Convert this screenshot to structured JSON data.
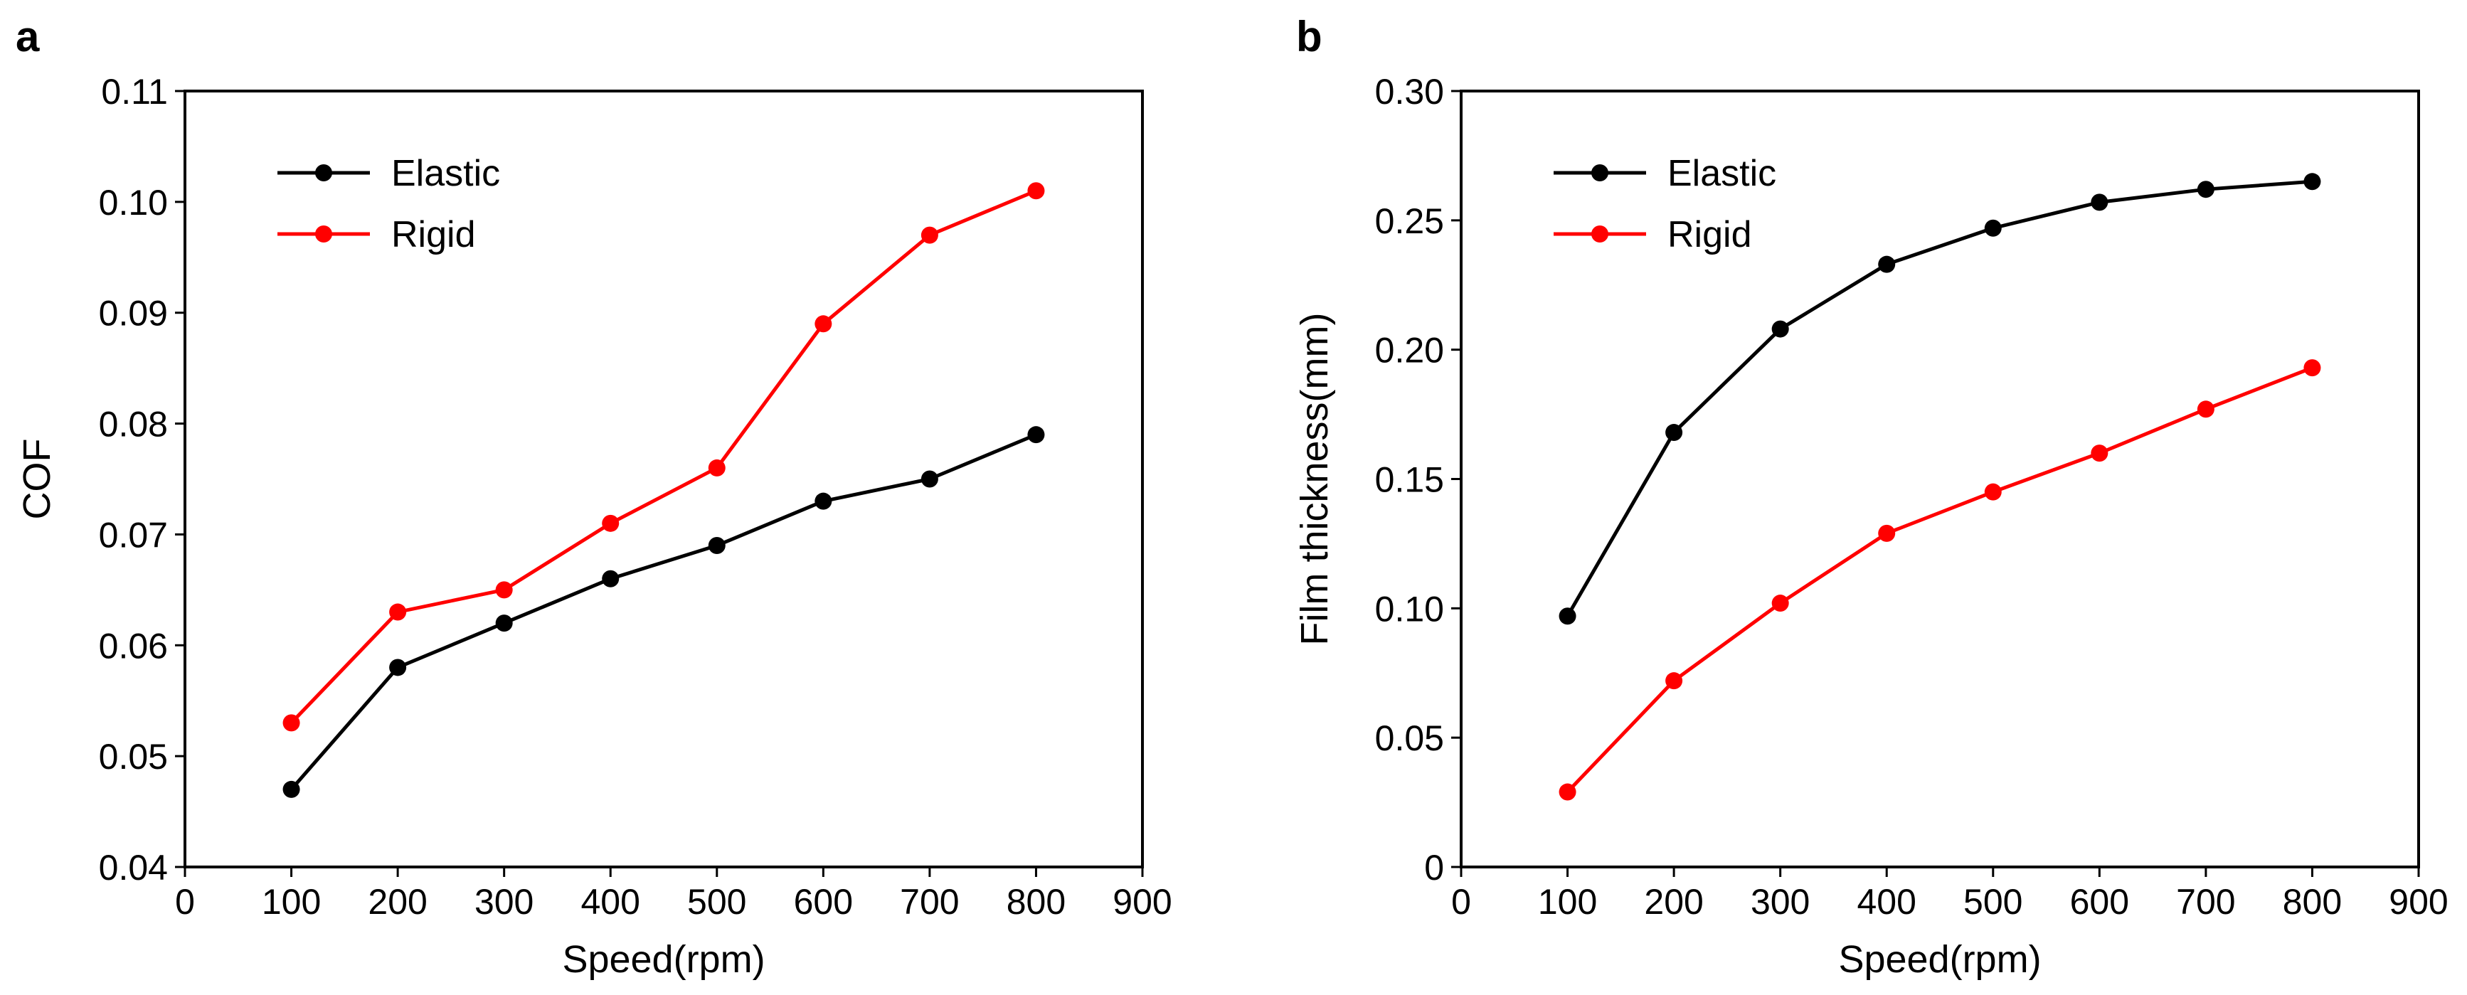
{
  "chart_data": [
    {
      "panel_label": "a",
      "type": "line",
      "xlabel": "Speed(rpm)",
      "ylabel": "COF",
      "xlim": [
        0,
        900
      ],
      "ylim": [
        0.04,
        0.11
      ],
      "xticks": [
        0,
        100,
        200,
        300,
        400,
        500,
        600,
        700,
        800,
        900
      ],
      "yticks": [
        0.04,
        0.05,
        0.06,
        0.07,
        0.08,
        0.09,
        0.1,
        0.11
      ],
      "xtick_labels": [
        "0",
        "100",
        "200",
        "300",
        "400",
        "500",
        "600",
        "700",
        "800",
        "900"
      ],
      "ytick_labels": [
        "0.04",
        "0.05",
        "0.06",
        "0.07",
        "0.08",
        "0.09",
        "0.10",
        "0.11"
      ],
      "legend_position": "top-left",
      "grid": false,
      "x": [
        100,
        200,
        300,
        400,
        500,
        600,
        700,
        800
      ],
      "series": [
        {
          "name": "Elastic",
          "color": "#000000",
          "values": [
            0.047,
            0.058,
            0.062,
            0.066,
            0.069,
            0.073,
            0.075,
            0.079
          ]
        },
        {
          "name": "Rigid",
          "color": "#ff0000",
          "values": [
            0.053,
            0.063,
            0.065,
            0.071,
            0.076,
            0.089,
            0.097,
            0.101
          ]
        }
      ]
    },
    {
      "panel_label": "b",
      "type": "line",
      "xlabel": "Speed(rpm)",
      "ylabel": "Film thickness(mm)",
      "xlim": [
        0,
        900
      ],
      "ylim": [
        0,
        0.3
      ],
      "xticks": [
        0,
        100,
        200,
        300,
        400,
        500,
        600,
        700,
        800,
        900
      ],
      "yticks": [
        0,
        0.05,
        0.1,
        0.15,
        0.2,
        0.25,
        0.3
      ],
      "xtick_labels": [
        "0",
        "100",
        "200",
        "300",
        "400",
        "500",
        "600",
        "700",
        "800",
        "900"
      ],
      "ytick_labels": [
        "0",
        "0.05",
        "0.10",
        "0.15",
        "0.20",
        "0.25",
        "0.30"
      ],
      "legend_position": "top-left",
      "grid": false,
      "x": [
        100,
        200,
        300,
        400,
        500,
        600,
        700,
        800
      ],
      "series": [
        {
          "name": "Elastic",
          "color": "#000000",
          "values": [
            0.097,
            0.168,
            0.208,
            0.233,
            0.247,
            0.257,
            0.262,
            0.265
          ]
        },
        {
          "name": "Rigid",
          "color": "#ff0000",
          "values": [
            0.029,
            0.072,
            0.102,
            0.129,
            0.145,
            0.16,
            0.177,
            0.193
          ]
        }
      ]
    }
  ]
}
